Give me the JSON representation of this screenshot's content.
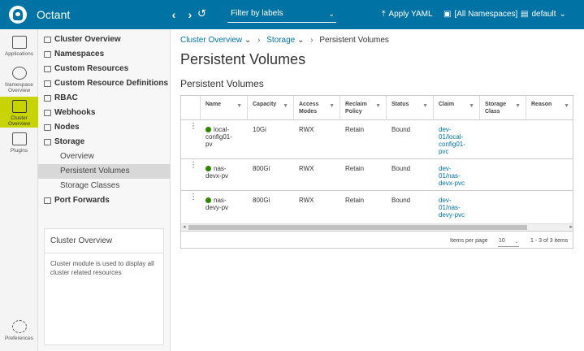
{
  "header": {
    "app_title": "Octant",
    "back_glyph": "‹",
    "forward_glyph": "›",
    "history_glyph": "↺",
    "filter_label": "Filter by labels",
    "filter_caret": "⌄",
    "apply_yaml_label": "Apply YAML",
    "namespaces_label": "[All Namespaces]",
    "context_label": "default",
    "accent_color": "#0072a3"
  },
  "rail": {
    "items": [
      {
        "label_line1": "Applications",
        "label_line2": "",
        "icon": "window-icon"
      },
      {
        "label_line1": "Namespace",
        "label_line2": "Overview",
        "icon": "gauge-icon"
      },
      {
        "label_line1": "Cluster",
        "label_line2": "Overview",
        "icon": "cluster-icon",
        "active": true
      },
      {
        "label_line1": "Plugins",
        "label_line2": "",
        "icon": "puzzle-icon"
      }
    ],
    "preferences_label": "Preferences",
    "active_color": "#c8d400"
  },
  "sidebar": {
    "items": [
      {
        "label": "Cluster Overview",
        "icon": "cluster-overview-icon"
      },
      {
        "label": "Namespaces",
        "icon": "namespaces-icon"
      },
      {
        "label": "Custom Resources",
        "icon": "custom-resources-icon"
      },
      {
        "label": "Custom Resource Definitions",
        "icon": "crd-icon"
      },
      {
        "label": "RBAC",
        "icon": "rbac-icon"
      },
      {
        "label": "Webhooks",
        "icon": "webhooks-icon"
      },
      {
        "label": "Nodes",
        "icon": "nodes-icon"
      },
      {
        "label": "Storage",
        "icon": "storage-icon"
      }
    ],
    "storage_children": [
      {
        "label": "Overview"
      },
      {
        "label": "Persistent Volumes",
        "active": true
      },
      {
        "label": "Storage Classes"
      }
    ],
    "port_forwards_label": "Port Forwards",
    "info_card": {
      "title": "Cluster Overview",
      "text": "Cluster module is used to display all cluster related resources"
    }
  },
  "main": {
    "breadcrumb": {
      "item1": "Cluster Overview",
      "item2": "Storage",
      "current": "Persistent Volumes",
      "caret": "⌄",
      "sep": "›"
    },
    "page_title": "Persistent Volumes",
    "section_title": "Persistent Volumes",
    "table": {
      "filter_glyph": "▼",
      "columns": [
        {
          "line1": "Name",
          "line2": ""
        },
        {
          "line1": "Capacity",
          "line2": ""
        },
        {
          "line1": "Access",
          "line2": "Modes"
        },
        {
          "line1": "Reclaim",
          "line2": "Policy"
        },
        {
          "line1": "Status",
          "line2": ""
        },
        {
          "line1": "Claim",
          "line2": ""
        },
        {
          "line1": "Storage",
          "line2": "Class"
        },
        {
          "line1": "Reason",
          "line2": ""
        }
      ],
      "rows": [
        {
          "name1": "local-",
          "name2": "config01-",
          "name3": "pv",
          "capacity": "10Gi",
          "access": "RWX",
          "reclaim": "Retain",
          "status": "Bound",
          "claim1": "dev-",
          "claim2": "01/local-",
          "claim3": "config01-",
          "claim4": "pvc"
        },
        {
          "name1": "nas-",
          "name2": "devx-pv",
          "name3": "",
          "capacity": "800Gi",
          "access": "RWX",
          "reclaim": "Retain",
          "status": "Bound",
          "claim1": "dev-",
          "claim2": "01/nas-",
          "claim3": "devx-pvc",
          "claim4": ""
        },
        {
          "name1": "nas-",
          "name2": "devy-pv",
          "name3": "",
          "capacity": "800Gi",
          "access": "RWX",
          "reclaim": "Retain",
          "status": "Bound",
          "claim1": "dev-",
          "claim2": "01/nas-",
          "claim3": "devy-pvc",
          "claim4": ""
        }
      ],
      "status_color": "#2f8400",
      "row_menu_glyph": "⋮",
      "scroll_left_glyph": "◂",
      "scroll_right_glyph": "▸",
      "footer": {
        "items_per_page_label": "Items per page",
        "page_size": "10",
        "page_size_caret": "⌄",
        "range": "1 - 3 of 3 items"
      }
    }
  }
}
